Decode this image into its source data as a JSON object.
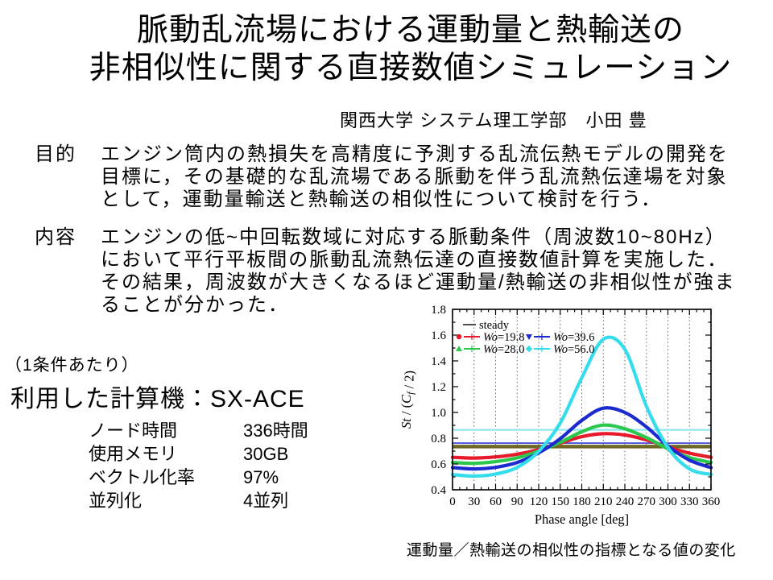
{
  "slide": {
    "title_line1": "脈動乱流場における運動量と熱輸送の",
    "title_line2": "非相似性に関する直接数値シミュレーション",
    "author": "関西大学 システム理工学部　小田 豊",
    "purpose_label": "目的",
    "purpose_lines": [
      "エンジン筒内の熱損失を高精度に予測する乱流伝熱モデルの開発を",
      "目標に，その基礎的な乱流場である脈動を伴う乱流熱伝達場を対象",
      "として，運動量輸送と熱輸送の相似性について検討を行う．"
    ],
    "content_label": "内容",
    "content_lines": [
      "エンジンの低~中回転数域に対応する脈動条件（周波数10~80Hz）",
      "において平行平板間の脈動乱流熱伝達の直接数値計算を実施した．",
      "その結果，周波数が大きくなるほど運動量/熱輸送の非相似性が強ま",
      "ることが分かった．"
    ],
    "per_condition_note": "（1条件あたり）",
    "machine_heading": "利用した計算機：SX-ACE",
    "specs_rows": [
      {
        "label": "ノード時間",
        "value": "336時間"
      },
      {
        "label": "使用メモリ",
        "value": "30GB"
      },
      {
        "label": "ベクトル化率",
        "value": "97%"
      },
      {
        "label": "並列化",
        "value": "4並列"
      }
    ],
    "figure_caption": "運動量／熱輸送の相似性の指標となる値の変化"
  },
  "chart_data": {
    "type": "line",
    "title": "",
    "xlabel": "Phase angle [deg]",
    "ylabel": "St / (Cf / 2)",
    "ylabel_parts": [
      {
        "t": "St",
        "i": true
      },
      {
        "t": " / (",
        "i": false
      },
      {
        "t": "C",
        "i": true
      },
      {
        "t": "f",
        "i": true,
        "sub": true
      },
      {
        "t": " / 2)",
        "i": false
      }
    ],
    "xlim": [
      0,
      360
    ],
    "ylim": [
      0.4,
      1.8
    ],
    "xticks": [
      0,
      30,
      60,
      90,
      120,
      150,
      180,
      210,
      240,
      270,
      300,
      330,
      360
    ],
    "yticks": [
      0.4,
      0.6,
      0.8,
      1.0,
      1.2,
      1.4,
      1.6,
      1.8
    ],
    "grid": "vertical dashed gridlines at 30 deg steps",
    "legend_position": "top-left inside plot",
    "legend": [
      "steady",
      "Wo=19.8",
      "Wo=39.6",
      "Wo=28.0",
      "Wo=56.0"
    ],
    "x": [
      0,
      30,
      60,
      90,
      120,
      150,
      180,
      210,
      240,
      270,
      300,
      330,
      360
    ],
    "series": [
      {
        "name": "Wo=19.8",
        "color": "#e8192b",
        "marker": "circle",
        "values": [
          0.652,
          0.646,
          0.655,
          0.676,
          0.712,
          0.762,
          0.812,
          0.835,
          0.825,
          0.787,
          0.732,
          0.684,
          0.652
        ]
      },
      {
        "name": "Wo=28.0",
        "color": "#2cc84e",
        "marker": "triangle-up",
        "values": [
          0.612,
          0.605,
          0.618,
          0.648,
          0.7,
          0.768,
          0.85,
          0.902,
          0.873,
          0.805,
          0.718,
          0.65,
          0.612
        ]
      },
      {
        "name": "Wo=39.6",
        "color": "#1c2bd0",
        "marker": "triangle-down",
        "values": [
          0.572,
          0.562,
          0.574,
          0.612,
          0.686,
          0.796,
          0.938,
          1.033,
          1.0,
          0.888,
          0.74,
          0.63,
          0.572
        ]
      },
      {
        "name": "Wo=56.0",
        "color": "#35dcec",
        "marker": "diamond",
        "values": [
          0.518,
          0.506,
          0.522,
          0.574,
          0.698,
          0.918,
          1.268,
          1.568,
          1.49,
          1.048,
          0.728,
          0.562,
          0.518
        ]
      }
    ],
    "reference_lines": [
      {
        "name": "Wo=56.0 time-mean",
        "value": 0.865,
        "color": "#8fe8f0",
        "width": 2.2
      },
      {
        "name": "Wo=39.6 time-mean",
        "value": 0.762,
        "color": "#4d55dd",
        "width": 1.8
      },
      {
        "name": "steady (overlapped with Wo=19.8 / Wo=28.0 means)",
        "value": 0.735,
        "color": "#6e6824",
        "width": 4.5
      }
    ]
  }
}
